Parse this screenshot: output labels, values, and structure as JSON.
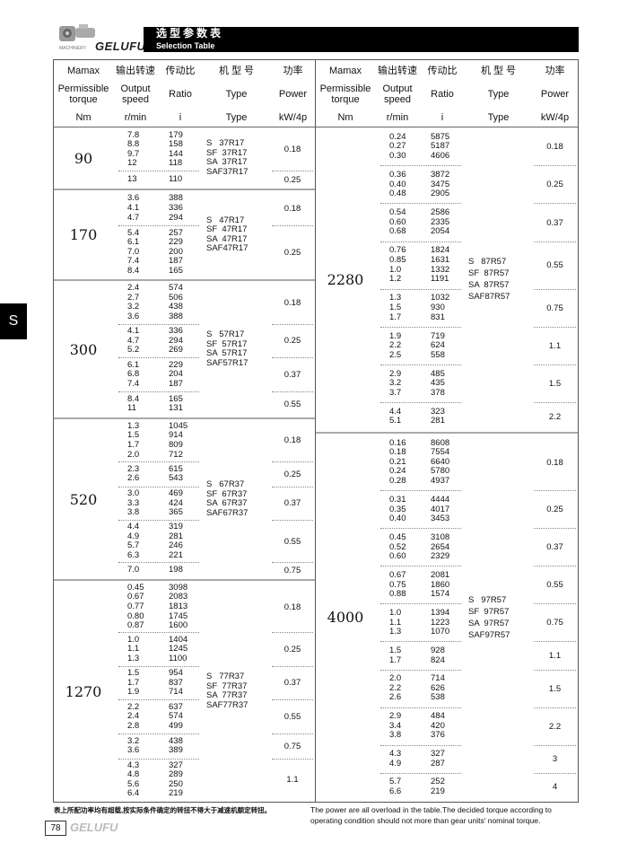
{
  "banner": {
    "brand_small": "MACHINERY",
    "brand": "GELUFU",
    "title_cn": "选型参数表",
    "title_en": "Selection Table"
  },
  "side_tab": "S",
  "header": {
    "row1": [
      "Mamax",
      "输出转速",
      "传动比",
      "机 型 号",
      "功率"
    ],
    "row2": [
      "Permissible torque",
      "Output speed",
      "Ratio",
      "Type",
      "Power"
    ],
    "row3": [
      "Nm",
      "r/min",
      "i",
      "Type",
      "kW/4p"
    ]
  },
  "left": [
    {
      "torque": "90",
      "type": [
        "S   37R17",
        "SF  37R17",
        "SA  37R17",
        "SAF37R17"
      ],
      "subs": [
        {
          "power": "0.18",
          "rows": [
            [
              "7.8",
              "179"
            ],
            [
              "8.8",
              "158"
            ],
            [
              "9.7",
              "144"
            ],
            [
              "12",
              "118"
            ]
          ]
        },
        {
          "power": "0.25",
          "rows": [
            [
              "13",
              "110"
            ]
          ]
        }
      ]
    },
    {
      "torque": "170",
      "type": [
        "S   47R17",
        "SF  47R17",
        "SA  47R17",
        "SAF47R17"
      ],
      "subs": [
        {
          "power": "0.18",
          "rows": [
            [
              "3.6",
              "388"
            ],
            [
              "4.1",
              "336"
            ],
            [
              "4.7",
              "294"
            ]
          ]
        },
        {
          "power": "0.25",
          "rows": [
            [
              "5.4",
              "257"
            ],
            [
              "6.1",
              "229"
            ],
            [
              "7.0",
              "200"
            ],
            [
              "7.4",
              "187"
            ],
            [
              "8.4",
              "165"
            ]
          ]
        }
      ]
    },
    {
      "torque": "300",
      "type": [
        "S   57R17",
        "SF  57R17",
        "SA  57R17",
        "SAF57R17"
      ],
      "subs": [
        {
          "power": "0.18",
          "rows": [
            [
              "2.4",
              "574"
            ],
            [
              "2.7",
              "506"
            ],
            [
              "3.2",
              "438"
            ],
            [
              "3.6",
              "388"
            ]
          ]
        },
        {
          "power": "0.25",
          "rows": [
            [
              "4.1",
              "336"
            ],
            [
              "4.7",
              "294"
            ],
            [
              "5.2",
              "269"
            ]
          ]
        },
        {
          "power": "0.37",
          "rows": [
            [
              "6.1",
              "229"
            ],
            [
              "6.8",
              "204"
            ],
            [
              "7.4",
              "187"
            ]
          ]
        },
        {
          "power": "0.55",
          "rows": [
            [
              "8.4",
              "165"
            ],
            [
              "11",
              "131"
            ]
          ]
        }
      ]
    },
    {
      "torque": "520",
      "type": [
        "S   67R37",
        "SF  67R37",
        "SA  67R37",
        "SAF67R37"
      ],
      "subs": [
        {
          "power": "0.18",
          "rows": [
            [
              "1.3",
              "1045"
            ],
            [
              "1.5",
              "914"
            ],
            [
              "1.7",
              "809"
            ],
            [
              "2.0",
              "712"
            ]
          ]
        },
        {
          "power": "0.25",
          "rows": [
            [
              "2.3",
              "615"
            ],
            [
              "2.6",
              "543"
            ]
          ]
        },
        {
          "power": "0.37",
          "rows": [
            [
              "3.0",
              "469"
            ],
            [
              "3.3",
              "424"
            ],
            [
              "3.8",
              "365"
            ]
          ]
        },
        {
          "power": "0.55",
          "rows": [
            [
              "4.4",
              "319"
            ],
            [
              "4.9",
              "281"
            ],
            [
              "5.7",
              "246"
            ],
            [
              "6.3",
              "221"
            ]
          ]
        },
        {
          "power": "0.75",
          "rows": [
            [
              "7.0",
              "198"
            ]
          ]
        }
      ]
    },
    {
      "torque": "1270",
      "type": [
        "S   77R37",
        "SF  77R37",
        "SA  77R37",
        "SAF77R37"
      ],
      "subs": [
        {
          "power": "0.18",
          "rows": [
            [
              "0.45",
              "3098"
            ],
            [
              "0.67",
              "2083"
            ],
            [
              "0.77",
              "1813"
            ],
            [
              "0.80",
              "1745"
            ],
            [
              "0.87",
              "1600"
            ]
          ]
        },
        {
          "power": "0.25",
          "rows": [
            [
              "1.0",
              "1404"
            ],
            [
              "1.1",
              "1245"
            ],
            [
              "1.3",
              "1100"
            ]
          ]
        },
        {
          "power": "0.37",
          "rows": [
            [
              "1.5",
              "954"
            ],
            [
              "1.7",
              "837"
            ],
            [
              "1.9",
              "714"
            ]
          ]
        },
        {
          "power": "0.55",
          "rows": [
            [
              "2.2",
              "637"
            ],
            [
              "2.4",
              "574"
            ],
            [
              "2.8",
              "499"
            ]
          ]
        },
        {
          "power": "0.75",
          "rows": [
            [
              "3.2",
              "438"
            ],
            [
              "3.6",
              "389"
            ]
          ]
        },
        {
          "power": "1.1",
          "rows": [
            [
              "4.3",
              "327"
            ],
            [
              "4.8",
              "289"
            ],
            [
              "5.6",
              "250"
            ],
            [
              "6.4",
              "219"
            ]
          ]
        }
      ]
    }
  ],
  "right": [
    {
      "torque": "2280",
      "type": [
        "S   87R57",
        "SF  87R57",
        "SA  87R57",
        "SAF87R57"
      ],
      "subs": [
        {
          "power": "0.18",
          "rows": [
            [
              "0.24",
              "5875"
            ],
            [
              "0.27",
              "5187"
            ],
            [
              "0.30",
              "4606"
            ]
          ]
        },
        {
          "power": "0.25",
          "rows": [
            [
              "0.36",
              "3872"
            ],
            [
              "0.40",
              "3475"
            ],
            [
              "0.48",
              "2905"
            ]
          ]
        },
        {
          "power": "0.37",
          "rows": [
            [
              "0.54",
              "2586"
            ],
            [
              "0.60",
              "2335"
            ],
            [
              "0.68",
              "2054"
            ]
          ]
        },
        {
          "power": "0.55",
          "rows": [
            [
              "0.76",
              "1824"
            ],
            [
              "0.85",
              "1631"
            ],
            [
              "1.0",
              "1332"
            ],
            [
              "1.2",
              "1191"
            ]
          ]
        },
        {
          "power": "0.75",
          "rows": [
            [
              "1.3",
              "1032"
            ],
            [
              "1.5",
              "930"
            ],
            [
              "1.7",
              "831"
            ]
          ]
        },
        {
          "power": "1.1",
          "rows": [
            [
              "1.9",
              "719"
            ],
            [
              "2.2",
              "624"
            ],
            [
              "2.5",
              "558"
            ]
          ]
        },
        {
          "power": "1.5",
          "rows": [
            [
              "2.9",
              "485"
            ],
            [
              "3.2",
              "435"
            ],
            [
              "3.7",
              "378"
            ]
          ]
        },
        {
          "power": "2.2",
          "rows": [
            [
              "4.4",
              "323"
            ],
            [
              "5.1",
              "281"
            ]
          ]
        }
      ]
    },
    {
      "torque": "4000",
      "type": [
        "S   97R57",
        "SF  97R57",
        "SA  97R57",
        "SAF97R57"
      ],
      "subs": [
        {
          "power": "0.18",
          "rows": [
            [
              "0.16",
              "8608"
            ],
            [
              "0.18",
              "7554"
            ],
            [
              "0.21",
              "6640"
            ],
            [
              "0.24",
              "5780"
            ],
            [
              "0.28",
              "4937"
            ]
          ]
        },
        {
          "power": "0.25",
          "rows": [
            [
              "0.31",
              "4444"
            ],
            [
              "0.35",
              "4017"
            ],
            [
              "0.40",
              "3453"
            ]
          ]
        },
        {
          "power": "0.37",
          "rows": [
            [
              "0.45",
              "3108"
            ],
            [
              "0.52",
              "2654"
            ],
            [
              "0.60",
              "2329"
            ]
          ]
        },
        {
          "power": "0.55",
          "rows": [
            [
              "0.67",
              "2081"
            ],
            [
              "0.75",
              "1860"
            ],
            [
              "0.88",
              "1574"
            ]
          ]
        },
        {
          "power": "0.75",
          "rows": [
            [
              "1.0",
              "1394"
            ],
            [
              "1.1",
              "1223"
            ],
            [
              "1.3",
              "1070"
            ]
          ]
        },
        {
          "power": "1.1",
          "rows": [
            [
              "1.5",
              "928"
            ],
            [
              "1.7",
              "824"
            ]
          ]
        },
        {
          "power": "1.5",
          "rows": [
            [
              "2.0",
              "714"
            ],
            [
              "2.2",
              "626"
            ],
            [
              "2.6",
              "538"
            ]
          ]
        },
        {
          "power": "2.2",
          "rows": [
            [
              "2.9",
              "484"
            ],
            [
              "3.4",
              "420"
            ],
            [
              "3.8",
              "376"
            ]
          ]
        },
        {
          "power": "3",
          "rows": [
            [
              "4.3",
              "327"
            ],
            [
              "4.9",
              "287"
            ]
          ]
        },
        {
          "power": "4",
          "rows": [
            [
              "5.7",
              "252"
            ],
            [
              "6.6",
              "219"
            ]
          ]
        }
      ]
    }
  ],
  "footer": {
    "note_cn": "表上所配功率均有超载,按实际条件确定的转扭不得大于减速机额定转扭。",
    "note_en": "The power are all overload in the table.The decided torque according to operating condition should not more than gear units' nominal torque.",
    "page": "78",
    "brand": "GELUFU"
  }
}
